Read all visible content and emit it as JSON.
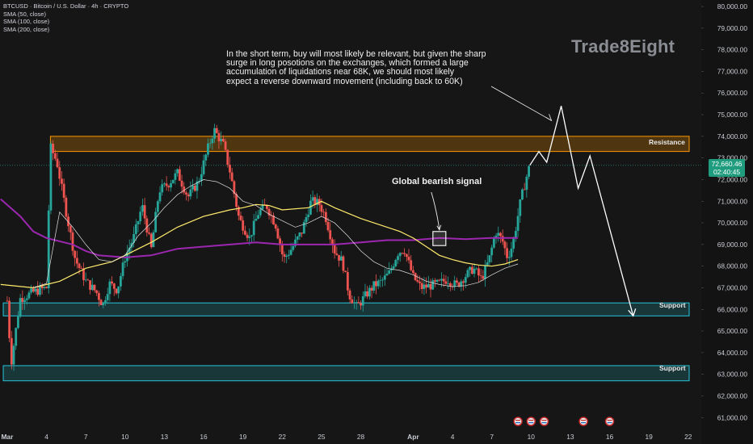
{
  "header": {
    "symbol_line": "BTCUSD · Bitcoin / U.S. Dollar · 4h · CRYPTO",
    "indicators": [
      "SMA (50, close)",
      "SMA (100, close)",
      "SMA (200, close)"
    ]
  },
  "watermark": "Trade8Eight",
  "price_tag": {
    "price": "72,660.46",
    "countdown": "02:40:45"
  },
  "colors": {
    "background": "#161616",
    "up": "#26a69a",
    "down": "#ef5350",
    "sma50": "#e0e0e0",
    "sma100": "#ffeb6b",
    "sma200": "#9c27b0",
    "resistance": "#ff9800",
    "support": "#26c6da"
  },
  "chart_data": {
    "type": "candlestick",
    "y_ticks": [
      "80,000.00",
      "79,000.00",
      "78,000.00",
      "77,000.00",
      "76,000.00",
      "75,000.00",
      "74,000.00",
      "73,000.00",
      "72,000.00",
      "71,000.00",
      "70,000.00",
      "69,000.00",
      "68,000.00",
      "67,000.00",
      "66,000.00",
      "65,000.00",
      "64,000.00",
      "63,000.00",
      "62,000.00",
      "61,000.00"
    ],
    "ylim": [
      60600,
      80300
    ],
    "x_ticks": [
      "Mar",
      "4",
      "7",
      "10",
      "13",
      "16",
      "19",
      "22",
      "25",
      "28",
      "Apr",
      "4",
      "7",
      "10",
      "13",
      "16",
      "19",
      "22"
    ],
    "x_tick_days": [
      1,
      4,
      7,
      10,
      13,
      16,
      19,
      22,
      25,
      28,
      32,
      35,
      38,
      41,
      44,
      47,
      50,
      53
    ],
    "xlim": [
      0.45,
      54
    ],
    "price_anchors": [
      [
        1,
        66400
      ],
      [
        1.3,
        63500
      ],
      [
        2,
        66500
      ],
      [
        3,
        66800
      ],
      [
        4,
        67000
      ],
      [
        4.3,
        73500
      ],
      [
        4.8,
        72800
      ],
      [
        5.5,
        70500
      ],
      [
        6.2,
        68300
      ],
      [
        7,
        67300
      ],
      [
        7.8,
        66800
      ],
      [
        8.3,
        66200
      ],
      [
        8.8,
        67200
      ],
      [
        9.4,
        66900
      ],
      [
        10,
        68400
      ],
      [
        10.7,
        69400
      ],
      [
        11.3,
        70800
      ],
      [
        12,
        68800
      ],
      [
        12.6,
        71500
      ],
      [
        13.3,
        71800
      ],
      [
        14,
        72300
      ],
      [
        14.8,
        71200
      ],
      [
        15.6,
        71900
      ],
      [
        16.3,
        73400
      ],
      [
        16.8,
        74300
      ],
      [
        17.5,
        73600
      ],
      [
        18,
        72400
      ],
      [
        18.7,
        70200
      ],
      [
        19.5,
        69300
      ],
      [
        20.2,
        70500
      ],
      [
        20.8,
        70800
      ],
      [
        21.5,
        69900
      ],
      [
        22.1,
        68300
      ],
      [
        22.7,
        68800
      ],
      [
        23.5,
        69600
      ],
      [
        24.2,
        71000
      ],
      [
        24.8,
        70900
      ],
      [
        25.3,
        70300
      ],
      [
        26,
        68700
      ],
      [
        26.6,
        68200
      ],
      [
        27.1,
        66700
      ],
      [
        27.7,
        66100
      ],
      [
        28.3,
        66600
      ],
      [
        29,
        67100
      ],
      [
        29.6,
        67300
      ],
      [
        30.2,
        67700
      ],
      [
        30.8,
        68600
      ],
      [
        31.3,
        68800
      ],
      [
        32,
        67500
      ],
      [
        32.6,
        67000
      ],
      [
        33.3,
        67100
      ],
      [
        34,
        67200
      ],
      [
        34.6,
        67400
      ],
      [
        35.3,
        67100
      ],
      [
        35.9,
        67500
      ],
      [
        36.6,
        67900
      ],
      [
        37.2,
        67400
      ],
      [
        37.8,
        68300
      ],
      [
        38.3,
        69600
      ],
      [
        38.8,
        69200
      ],
      [
        39.2,
        68400
      ],
      [
        39.6,
        69000
      ],
      [
        39.9,
        70000
      ],
      [
        40.2,
        71000
      ],
      [
        40.6,
        72000
      ],
      [
        40.9,
        72660
      ]
    ],
    "sma50_anchors": [
      [
        3,
        67000
      ],
      [
        4,
        67200
      ],
      [
        5,
        70500
      ],
      [
        6,
        69800
      ],
      [
        7,
        69000
      ],
      [
        8,
        68300
      ],
      [
        9,
        68200
      ],
      [
        10,
        68500
      ],
      [
        11,
        69400
      ],
      [
        12,
        70000
      ],
      [
        13,
        70700
      ],
      [
        14,
        71300
      ],
      [
        15,
        71700
      ],
      [
        16,
        72000
      ],
      [
        17,
        71900
      ],
      [
        18,
        71600
      ],
      [
        19,
        71000
      ],
      [
        20,
        70800
      ],
      [
        21,
        70400
      ],
      [
        22,
        70100
      ],
      [
        23,
        69800
      ],
      [
        24,
        70000
      ],
      [
        25,
        70300
      ],
      [
        26,
        70000
      ],
      [
        27,
        69400
      ],
      [
        28,
        68700
      ],
      [
        29,
        68200
      ],
      [
        30,
        67900
      ],
      [
        31,
        67800
      ],
      [
        32,
        67600
      ],
      [
        33,
        67300
      ],
      [
        34,
        67150
      ],
      [
        35,
        67050
      ],
      [
        36,
        67100
      ],
      [
        37,
        67250
      ],
      [
        38,
        67600
      ],
      [
        39,
        67900
      ],
      [
        40,
        68100
      ]
    ],
    "sma100_anchors": [
      [
        0.5,
        67150
      ],
      [
        3,
        67000
      ],
      [
        5,
        67300
      ],
      [
        7,
        67900
      ],
      [
        9,
        68200
      ],
      [
        10,
        68500
      ],
      [
        12,
        69100
      ],
      [
        14,
        69800
      ],
      [
        16,
        70300
      ],
      [
        18,
        70600
      ],
      [
        19,
        70700
      ],
      [
        20,
        70850
      ],
      [
        21,
        70800
      ],
      [
        22,
        70600
      ],
      [
        24,
        70700
      ],
      [
        25,
        71000
      ],
      [
        26,
        70700
      ],
      [
        28,
        70200
      ],
      [
        30,
        69800
      ],
      [
        31,
        69600
      ],
      [
        32,
        69300
      ],
      [
        33,
        68900
      ],
      [
        34,
        68500
      ],
      [
        35,
        68300
      ],
      [
        36,
        68150
      ],
      [
        37,
        68050
      ],
      [
        38,
        68000
      ],
      [
        39,
        68100
      ],
      [
        40,
        68300
      ]
    ],
    "sma200_anchors": [
      [
        0.5,
        71100
      ],
      [
        2,
        70300
      ],
      [
        3,
        69600
      ],
      [
        4,
        69300
      ],
      [
        6,
        69000
      ],
      [
        7,
        68700
      ],
      [
        8,
        68500
      ],
      [
        10,
        68400
      ],
      [
        12,
        68500
      ],
      [
        14,
        68800
      ],
      [
        16,
        68900
      ],
      [
        18,
        69000
      ],
      [
        20,
        69100
      ],
      [
        22,
        69000
      ],
      [
        24,
        69000
      ],
      [
        26,
        69000
      ],
      [
        28,
        69100
      ],
      [
        30,
        69200
      ],
      [
        32,
        69200
      ],
      [
        34,
        69300
      ],
      [
        36,
        69250
      ],
      [
        38,
        69300
      ],
      [
        40,
        69300
      ]
    ],
    "resistance_zone": {
      "label": "Resistance",
      "range": [
        73300,
        74000
      ],
      "from_day": 4.3
    },
    "support_zones": [
      {
        "label": "Support",
        "range": [
          65700,
          66300
        ],
        "from_day": 0.7
      },
      {
        "label": "Support",
        "range": [
          62700,
          63400
        ],
        "from_day": 0.7
      }
    ],
    "signal_box": {
      "label": "Global bearish signal",
      "day": 34.0,
      "price_range": [
        68950,
        69600
      ]
    },
    "projection": [
      [
        40.9,
        72660
      ],
      [
        41.6,
        73300
      ],
      [
        42.2,
        72800
      ],
      [
        43.3,
        75400
      ],
      [
        44.6,
        71600
      ],
      [
        45.5,
        73100
      ],
      [
        48.8,
        65700
      ]
    ],
    "annotation_text": "In the short term, buy will most likely be relevant, but given the sharp\nsurge in long posotions on the exchanges, which formed a large\naccumulation of liquidations near 68K, we should most likely\nexpect a reverse downward movement (including back to 60K)",
    "news_icon_days": [
      40,
      41,
      42,
      45,
      47
    ]
  }
}
